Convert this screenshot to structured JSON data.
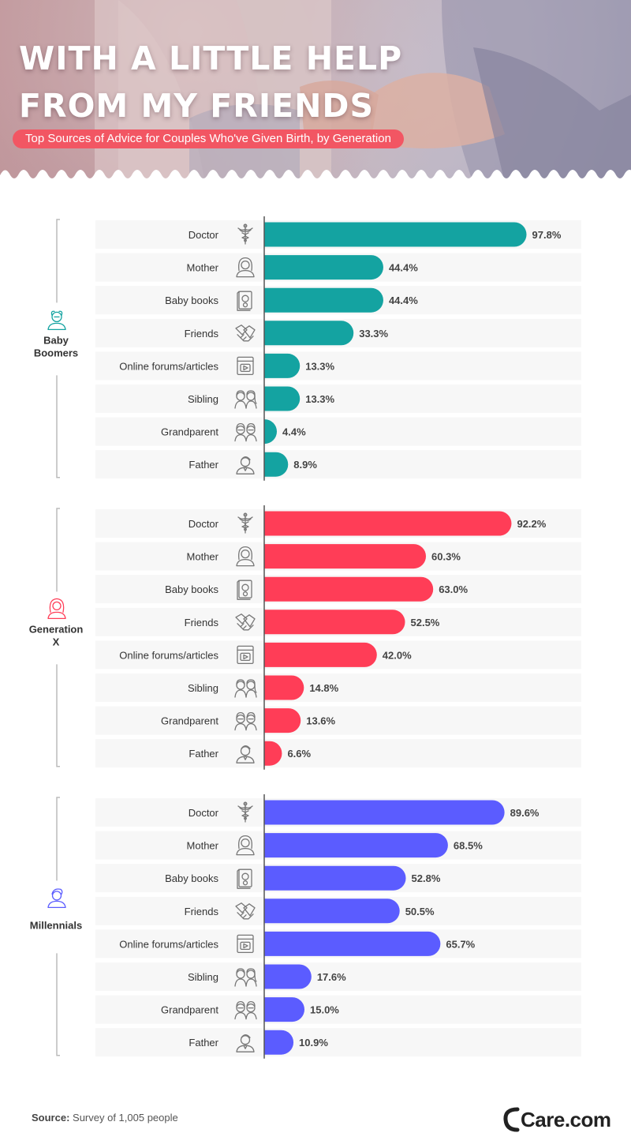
{
  "header": {
    "title_line1": "WITH A LITTLE HELP",
    "title_line2": "FROM MY FRIENDS",
    "subtitle": "Top Sources of Advice for Couples Who've Given Birth, by Generation"
  },
  "footer": {
    "source_label": "Source:",
    "source_text": "Survey of 1,005 people",
    "logo_text": "Care.com"
  },
  "colors": {
    "baby_boomers": "#14a3a1",
    "generation_x": "#ff3d57",
    "millennials": "#5b5cff",
    "row_bg": "#f7f7f7",
    "subtitle_bg": "#f25663"
  },
  "chart_data": {
    "type": "bar",
    "orientation": "horizontal",
    "value_suffix": "%",
    "categories": [
      "Doctor",
      "Mother",
      "Baby books",
      "Friends",
      "Online forums/articles",
      "Sibling",
      "Grandparent",
      "Father"
    ],
    "category_icons": [
      "caduceus-icon",
      "mother-icon",
      "baby-book-icon",
      "handshake-icon",
      "video-article-icon",
      "sibling-icon",
      "grandparent-icon",
      "father-icon"
    ],
    "xlim": [
      0,
      100
    ],
    "groups": [
      {
        "label_line1": "Baby",
        "label_line2": "Boomers",
        "icon": "baby-boomer-icon",
        "values": [
          97.8,
          44.4,
          44.4,
          33.3,
          13.3,
          13.3,
          4.4,
          8.9
        ],
        "labels": [
          "97.8%",
          "44.4%",
          "44.4%",
          "33.3%",
          "13.3%",
          "13.3%",
          "4.4%",
          "8.9%"
        ]
      },
      {
        "label_line1": "Generation",
        "label_line2": "X",
        "icon": "generation-x-icon",
        "values": [
          92.2,
          60.3,
          63.0,
          52.5,
          42.0,
          14.8,
          13.6,
          6.6
        ],
        "labels": [
          "92.2%",
          "60.3%",
          "63.0%",
          "52.5%",
          "42.0%",
          "14.8%",
          "13.6%",
          "6.6%"
        ]
      },
      {
        "label_line1": "Millennials",
        "label_line2": "",
        "icon": "millennial-icon",
        "values": [
          89.6,
          68.5,
          52.8,
          50.5,
          65.7,
          17.6,
          15.0,
          10.9
        ],
        "labels": [
          "89.6%",
          "68.5%",
          "52.8%",
          "50.5%",
          "65.7%",
          "17.6%",
          "15.0%",
          "10.9%"
        ]
      }
    ]
  }
}
